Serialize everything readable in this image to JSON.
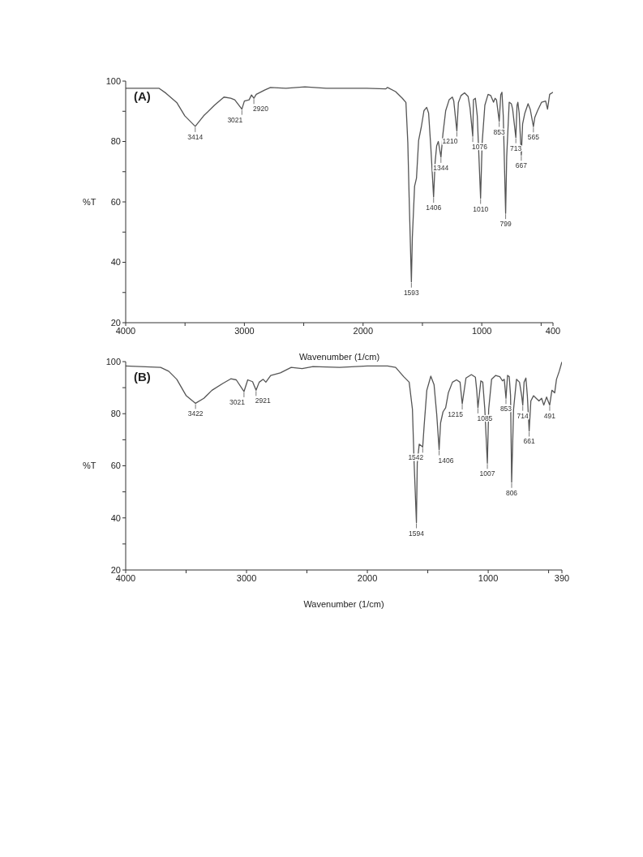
{
  "chart_data": [
    {
      "type": "line",
      "title": "(A)",
      "xlabel": "Wavenumber (1/cm)",
      "ylabel": "%T",
      "xlim": [
        4000,
        400
      ],
      "ylim": [
        20,
        100
      ],
      "xticks": [
        4000,
        {
          "value": 3500,
          "label": null
        },
        3000,
        {
          "value": 2500,
          "label": null
        },
        2000,
        {
          "value": 1500,
          "label": null
        },
        1000,
        {
          "value": 500,
          "label": null
        },
        400
      ],
      "yticks": [
        20,
        {
          "value": 30,
          "label": null
        },
        40,
        {
          "value": 50,
          "label": null
        },
        60,
        {
          "value": 70,
          "label": null
        },
        80,
        {
          "value": 90,
          "label": null
        },
        100
      ],
      "marker": "none",
      "line_style": "solid",
      "series": [
        {
          "color": "#555555",
          "x": [
            4000,
            3718,
            3661,
            3570,
            3502,
            3414,
            3343,
            3252,
            3172,
            3115,
            3081,
            3021,
            3000,
            2960,
            2940,
            2920,
            2900,
            2830,
            2780,
            2650,
            2490,
            2310,
            1970,
            1810,
            1794,
            1726,
            1669,
            1639,
            1623,
            1612,
            1593,
            1585,
            1566,
            1550,
            1532,
            1509,
            1487,
            1464,
            1448,
            1430,
            1406,
            1393,
            1380,
            1366,
            1344,
            1327,
            1304,
            1275,
            1248,
            1236,
            1210,
            1197,
            1175,
            1145,
            1115,
            1099,
            1076,
            1070,
            1054,
            1038,
            1024,
            1010,
            997,
            974,
            947,
            924,
            901,
            888,
            876,
            853,
            840,
            830,
            819,
            799,
            790,
            769,
            751,
            740,
            713,
            703,
            696,
            685,
            667,
            656,
            637,
            610,
            592,
            565,
            553,
            530,
            496,
            462,
            446,
            428,
            400
          ],
          "values": [
            97.6,
            97.6,
            96,
            92.9,
            88.5,
            85,
            88.5,
            92,
            94.7,
            94.3,
            93.8,
            90.7,
            93.4,
            93.8,
            95.4,
            94.3,
            95.6,
            97,
            97.9,
            97.6,
            98.1,
            97.6,
            97.6,
            97.4,
            97.9,
            96.5,
            94.3,
            92.9,
            79.5,
            61.6,
            33.5,
            48.2,
            65.2,
            67.9,
            80.4,
            84.9,
            90.2,
            91.3,
            89.4,
            78.6,
            61.6,
            73.2,
            78.6,
            80,
            74.8,
            82.6,
            90.2,
            93.8,
            94.7,
            93.4,
            83.5,
            92.9,
            95.2,
            96.1,
            94.9,
            91.1,
            81.7,
            93.8,
            94.3,
            88.5,
            75,
            61.2,
            79.5,
            92,
            95.6,
            95.2,
            93,
            94.3,
            93.8,
            86.7,
            95.5,
            96.3,
            88.5,
            56.2,
            75,
            93,
            92.5,
            90.7,
            81.3,
            92,
            93,
            89.4,
            75.5,
            85.8,
            89.4,
            92.5,
            90.7,
            84.9,
            88,
            90.2,
            93,
            93.4,
            90.7,
            95.6,
            96.3
          ]
        }
      ],
      "annotations": [
        {
          "text": "3414",
          "x": 3414,
          "y": 85
        },
        {
          "text": "3021",
          "x": 3021,
          "y": 90.7
        },
        {
          "text": "2920",
          "x": 2920,
          "y": 94.3
        },
        {
          "text": "1593",
          "x": 1593,
          "y": 33.5
        },
        {
          "text": "1406",
          "x": 1406,
          "y": 61.6
        },
        {
          "text": "1344",
          "x": 1344,
          "y": 74.8
        },
        {
          "text": "1210",
          "x": 1210,
          "y": 83.5
        },
        {
          "text": "1076",
          "x": 1076,
          "y": 81.7
        },
        {
          "text": "1010",
          "x": 1010,
          "y": 61.2
        },
        {
          "text": "853",
          "x": 853,
          "y": 86.7
        },
        {
          "text": "799",
          "x": 799,
          "y": 56.2
        },
        {
          "text": "713",
          "x": 713,
          "y": 81.3
        },
        {
          "text": "667",
          "x": 667,
          "y": 75.5
        },
        {
          "text": "565",
          "x": 565,
          "y": 84.9
        }
      ]
    },
    {
      "type": "line",
      "title": "(B)",
      "xlabel": "Wavenumber (1/cm)",
      "ylabel": "%T",
      "xlim": [
        4000,
        390
      ],
      "ylim": [
        20,
        100
      ],
      "xticks": [
        4000,
        {
          "value": 3500,
          "label": null
        },
        3000,
        {
          "value": 2500,
          "label": null
        },
        2000,
        {
          "value": 1500,
          "label": null
        },
        1000,
        {
          "value": 500,
          "label": null
        },
        390
      ],
      "yticks": [
        20,
        {
          "value": 30,
          "label": null
        },
        40,
        {
          "value": 50,
          "label": null
        },
        60,
        {
          "value": 70,
          "label": null
        },
        80,
        {
          "value": 90,
          "label": null
        },
        100
      ],
      "marker": "none",
      "line_style": "solid",
      "series": [
        {
          "color": "#555555",
          "x": [
            4000,
            3711,
            3644,
            3577,
            3499,
            3422,
            3353,
            3286,
            3197,
            3130,
            3085,
            3021,
            2990,
            2950,
            2921,
            2895,
            2862,
            2840,
            2800,
            2720,
            2630,
            2540,
            2450,
            2230,
            2000,
            1833,
            1766,
            1699,
            1654,
            1627,
            1613,
            1594,
            1587,
            1571,
            1542,
            1530,
            1508,
            1475,
            1448,
            1426,
            1406,
            1394,
            1374,
            1352,
            1330,
            1296,
            1262,
            1233,
            1215,
            1184,
            1139,
            1106,
            1095,
            1085,
            1061,
            1045,
            1028,
            1007,
            996,
            972,
            938,
            904,
            882,
            867,
            853,
            840,
            826,
            815,
            806,
            790,
            766,
            741,
            723,
            714,
            703,
            688,
            676,
            661,
            647,
            625,
            603,
            580,
            558,
            540,
            517,
            491,
            473,
            450,
            435,
            412,
            390
          ],
          "values": [
            98.3,
            97.8,
            96.3,
            93.2,
            86.9,
            84,
            85.9,
            89,
            91.6,
            93.4,
            93,
            88.5,
            93,
            92.3,
            89,
            92.1,
            93.2,
            92.1,
            94.7,
            95.7,
            97.8,
            97.3,
            98.1,
            97.8,
            98.3,
            98.3,
            97.8,
            94.2,
            92.1,
            81.7,
            61,
            38.2,
            61,
            68.3,
            67.2,
            75.5,
            89,
            94.4,
            91.1,
            79.7,
            66.2,
            76.5,
            80.7,
            82.3,
            88,
            92.1,
            93,
            92.1,
            83.8,
            93.7,
            95,
            94,
            89,
            82.3,
            92.6,
            92.1,
            81.7,
            61,
            81.7,
            93.2,
            94.7,
            94.2,
            92.6,
            93.2,
            85.9,
            94.7,
            94.2,
            86.9,
            53.7,
            81.7,
            93.2,
            92.1,
            86.9,
            83.3,
            92.1,
            93.7,
            86.9,
            73.4,
            84.9,
            86.9,
            85.9,
            84.9,
            85.9,
            83.3,
            86.4,
            83.3,
            89,
            88,
            93.2,
            96.3,
            99.9
          ]
        }
      ],
      "annotations": [
        {
          "text": "3422",
          "x": 3422,
          "y": 84
        },
        {
          "text": "3021",
          "x": 3021,
          "y": 88.5
        },
        {
          "text": "2921",
          "x": 2921,
          "y": 89
        },
        {
          "text": "1594",
          "x": 1594,
          "y": 38.2
        },
        {
          "text": "1542",
          "x": 1542,
          "y": 67.2
        },
        {
          "text": "1406",
          "x": 1406,
          "y": 66.2
        },
        {
          "text": "1215",
          "x": 1215,
          "y": 83.8
        },
        {
          "text": "1085",
          "x": 1085,
          "y": 82.3
        },
        {
          "text": "1007",
          "x": 1007,
          "y": 61
        },
        {
          "text": "853",
          "x": 853,
          "y": 85.9
        },
        {
          "text": "806",
          "x": 806,
          "y": 53.7
        },
        {
          "text": "714",
          "x": 714,
          "y": 83.3
        },
        {
          "text": "661",
          "x": 661,
          "y": 73.4
        },
        {
          "text": "491",
          "x": 491,
          "y": 83.3
        }
      ]
    }
  ]
}
